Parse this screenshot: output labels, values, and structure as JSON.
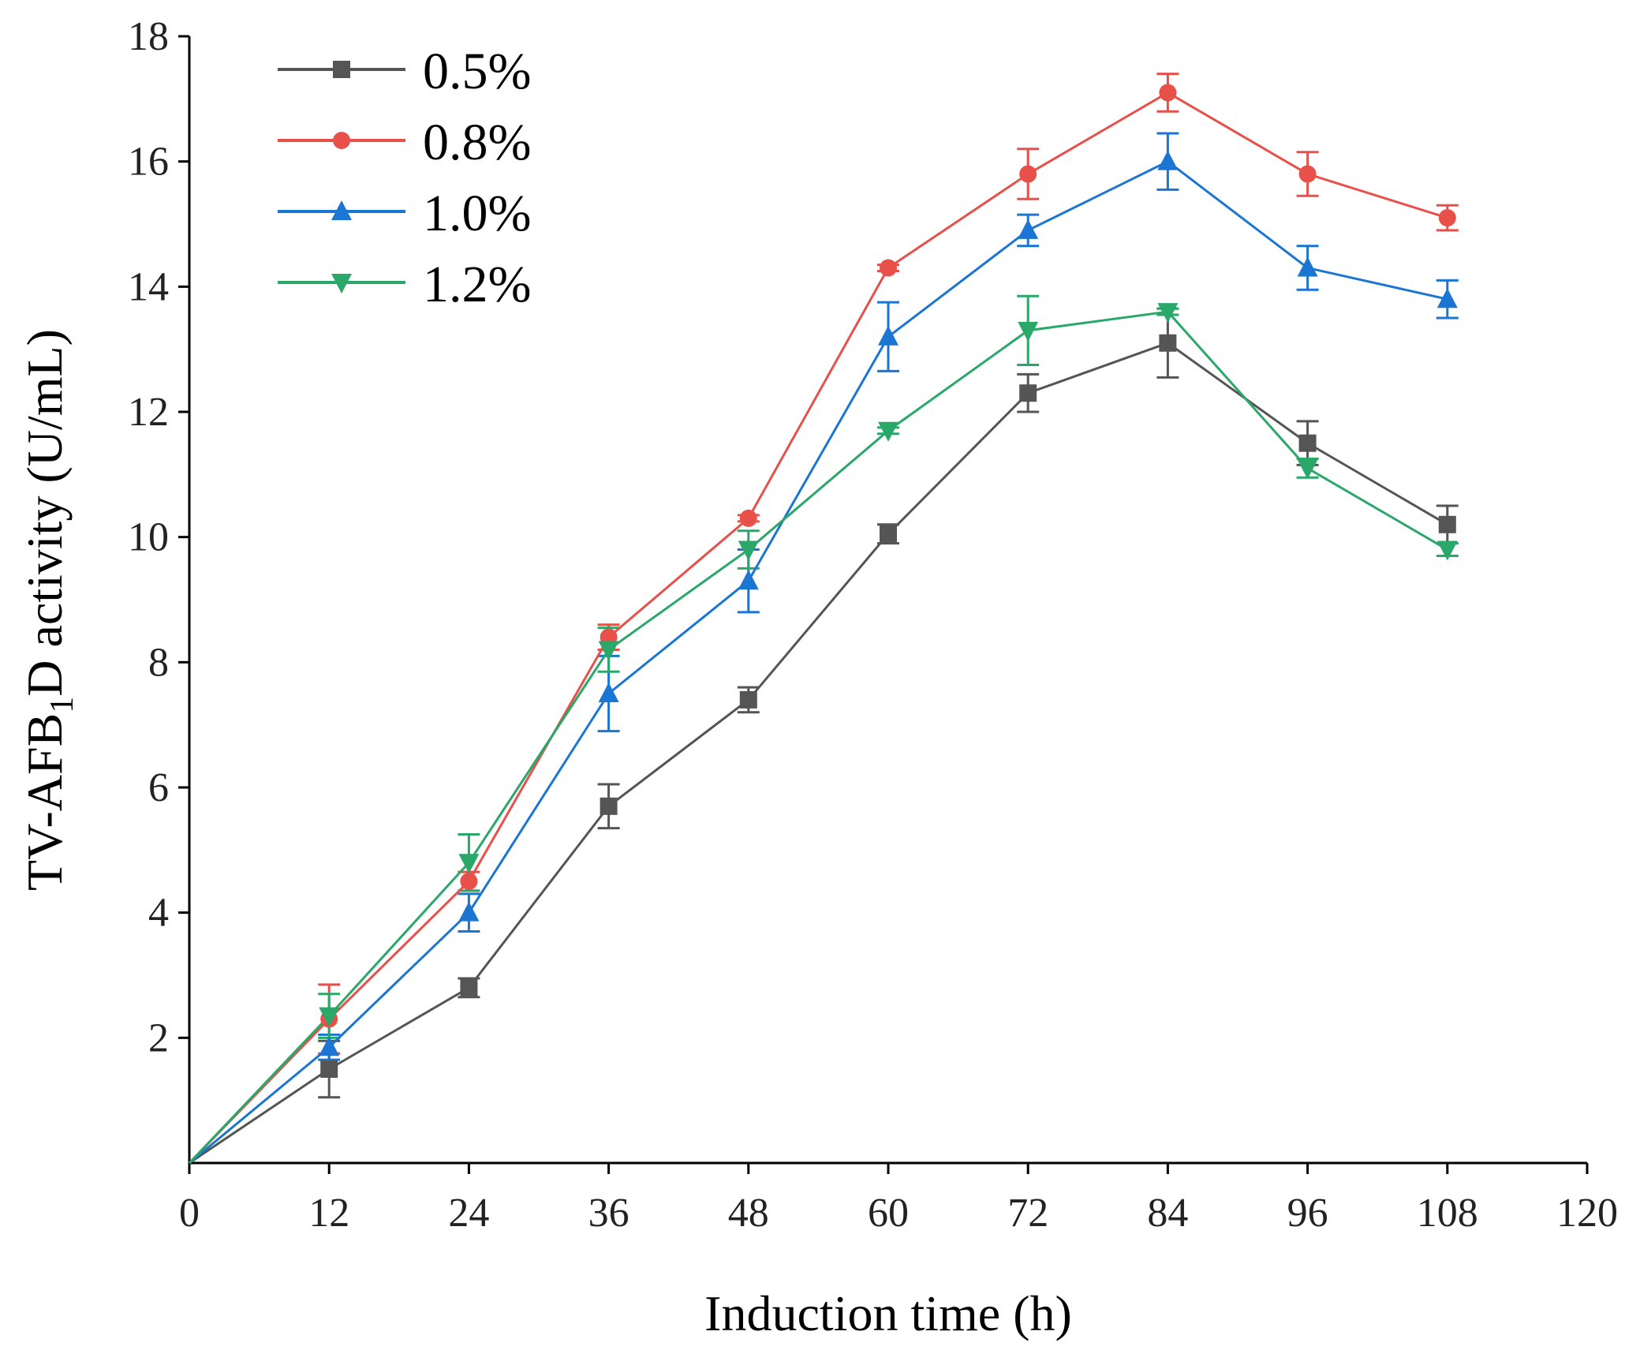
{
  "chart_data": {
    "type": "line",
    "title": "",
    "xlabel": "Induction time (h)",
    "ylabel_parts": {
      "before": "TV-AFB",
      "sub": "1",
      "after": "D activity (U/mL)"
    },
    "xlim": [
      0,
      120
    ],
    "ylim": [
      0,
      18
    ],
    "x_ticks": [
      0,
      12,
      24,
      36,
      48,
      60,
      72,
      84,
      96,
      108,
      120
    ],
    "y_ticks": [
      2,
      4,
      6,
      8,
      10,
      12,
      14,
      16,
      18
    ],
    "grid": false,
    "legend_position": "top-left",
    "x": [
      0,
      12,
      24,
      36,
      48,
      60,
      72,
      84,
      96,
      108
    ],
    "series": [
      {
        "name": "0.5%",
        "color": "#555555",
        "marker": "square",
        "values": [
          0,
          1.5,
          2.8,
          5.7,
          7.4,
          10.05,
          12.3,
          13.1,
          11.5,
          10.2
        ],
        "errors": [
          0,
          0.45,
          0.15,
          0.35,
          0.2,
          0.15,
          0.3,
          0.55,
          0.35,
          0.3
        ]
      },
      {
        "name": "0.8%",
        "color": "#e8504a",
        "marker": "circle",
        "values": [
          0,
          2.3,
          4.5,
          8.4,
          10.3,
          14.3,
          15.8,
          17.1,
          15.8,
          15.1
        ],
        "errors": [
          0,
          0.55,
          0.15,
          0.2,
          0.05,
          0.05,
          0.4,
          0.3,
          0.35,
          0.2
        ]
      },
      {
        "name": "1.0%",
        "color": "#1a76d2",
        "marker": "triangle-up",
        "values": [
          0,
          1.85,
          4.0,
          7.5,
          9.3,
          13.2,
          14.9,
          16.0,
          14.3,
          13.8
        ],
        "errors": [
          0,
          0.2,
          0.3,
          0.6,
          0.5,
          0.55,
          0.25,
          0.45,
          0.35,
          0.3
        ]
      },
      {
        "name": "1.2%",
        "color": "#2aa86a",
        "marker": "triangle-down",
        "values": [
          0,
          2.35,
          4.8,
          8.2,
          9.8,
          11.7,
          13.3,
          13.6,
          11.1,
          9.8
        ],
        "errors": [
          0,
          0.35,
          0.45,
          0.35,
          0.3,
          0.05,
          0.55,
          0.05,
          0.15,
          0.1
        ]
      }
    ]
  }
}
